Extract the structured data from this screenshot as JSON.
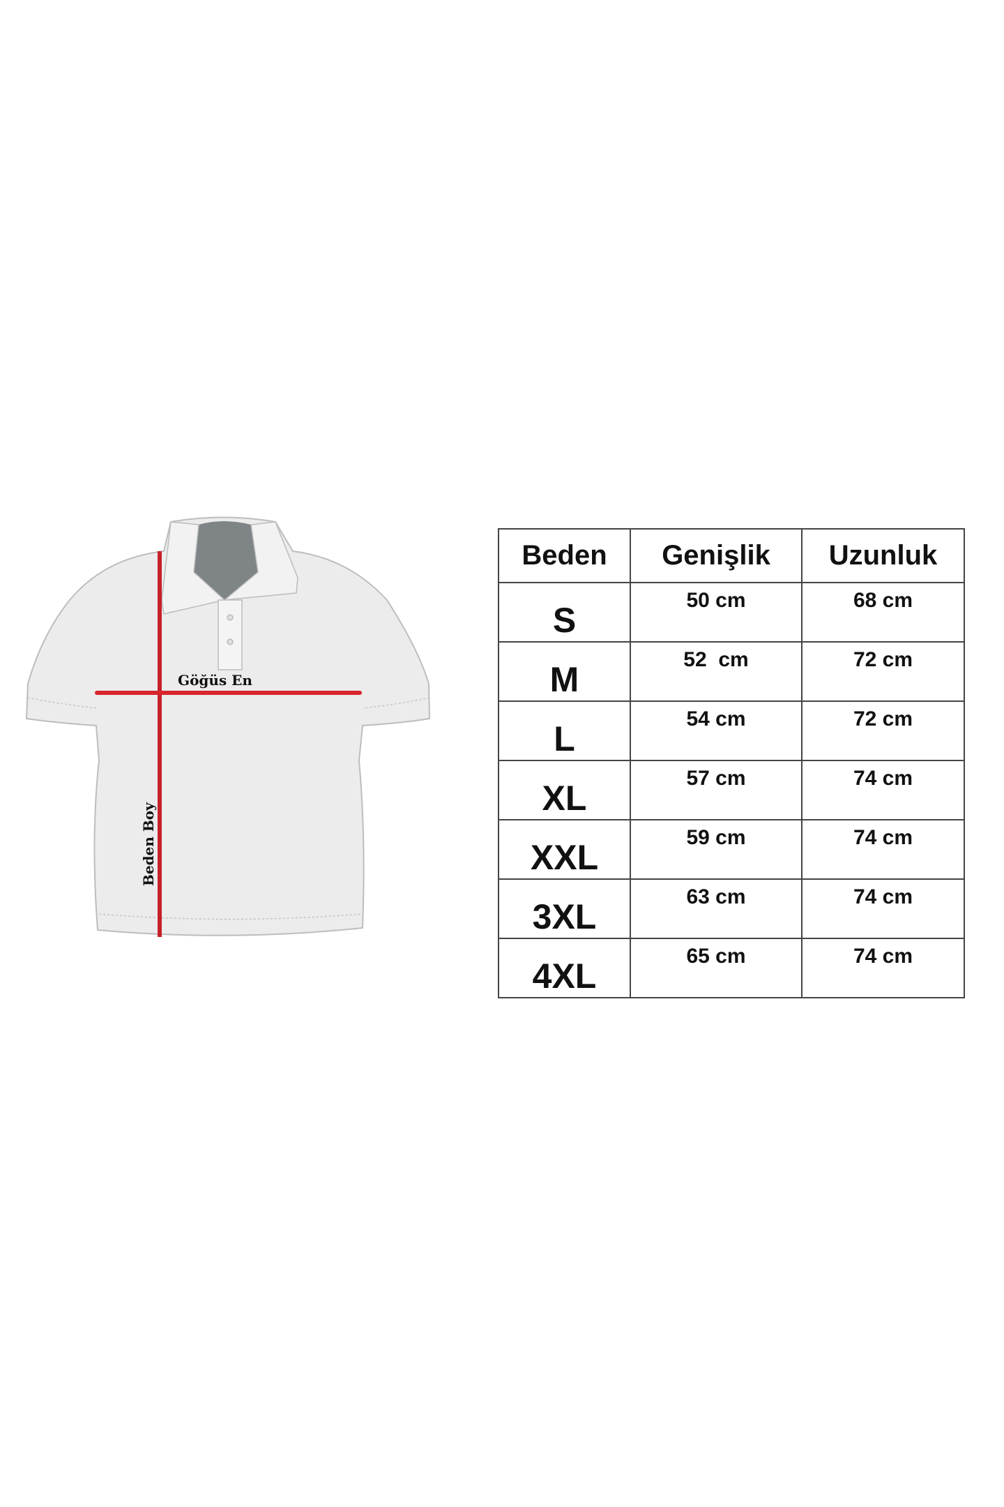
{
  "diagram": {
    "chest_label": "Göğüs En",
    "length_label": "Beden Boy",
    "measure_line_color": "#c8202a"
  },
  "table": {
    "headers": [
      "Beden",
      "Genişlik",
      "Uzunluk"
    ],
    "rows": [
      {
        "size": "S",
        "width": "50 cm",
        "length": "68 cm"
      },
      {
        "size": "M",
        "width": "52  cm",
        "length": "72 cm"
      },
      {
        "size": "L",
        "width": "54 cm",
        "length": "72 cm"
      },
      {
        "size": "XL",
        "width": "57 cm",
        "length": "74 cm"
      },
      {
        "size": "XXL",
        "width": "59 cm",
        "length": "74 cm"
      },
      {
        "size": "3XL",
        "width": "63 cm",
        "length": "74 cm"
      },
      {
        "size": "4XL",
        "width": "65 cm",
        "length": "74 cm"
      }
    ]
  }
}
